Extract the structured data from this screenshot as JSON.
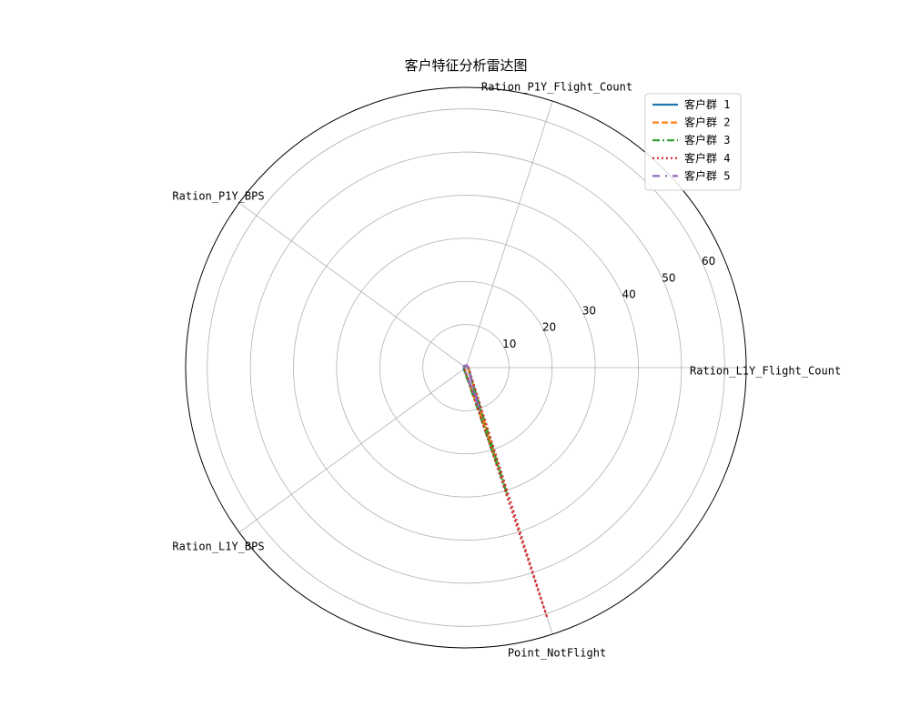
{
  "chart_data": {
    "type": "radar",
    "title": "客户特征分析雷达图",
    "axes": [
      "Ration_L1Y_Flight_Count",
      "Ration_P1Y_Flight_Count",
      "Ration_P1Y_BPS",
      "Ration_L1Y_BPS",
      "Point_NotFlight"
    ],
    "radial_ticks": [
      10,
      20,
      30,
      40,
      50,
      60
    ],
    "rlim": [
      0,
      65
    ],
    "grid": true,
    "legend_position": "top-right",
    "series": [
      {
        "name": "客户群 1",
        "color": "#1f77b4",
        "line_style": "solid",
        "values": [
          0.6,
          0.4,
          0.6,
          0.6,
          11
        ]
      },
      {
        "name": "客户群 2",
        "color": "#ff7f0e",
        "line_style": "dashed",
        "values": [
          0.5,
          0.5,
          0.5,
          0.5,
          24
        ]
      },
      {
        "name": "客户群 3",
        "color": "#2ca02c",
        "line_style": "dashdot",
        "values": [
          0.5,
          0.5,
          0.5,
          0.6,
          31
        ]
      },
      {
        "name": "客户群 4",
        "color": "#d62728",
        "line_style": "dotted",
        "values": [
          0.6,
          0.6,
          0.6,
          0.4,
          61
        ]
      },
      {
        "name": "客户群 5",
        "color": "#9467bd",
        "line_style": "loosely-dashdot",
        "values": [
          0.5,
          0.6,
          0.6,
          0.5,
          10
        ]
      }
    ]
  }
}
